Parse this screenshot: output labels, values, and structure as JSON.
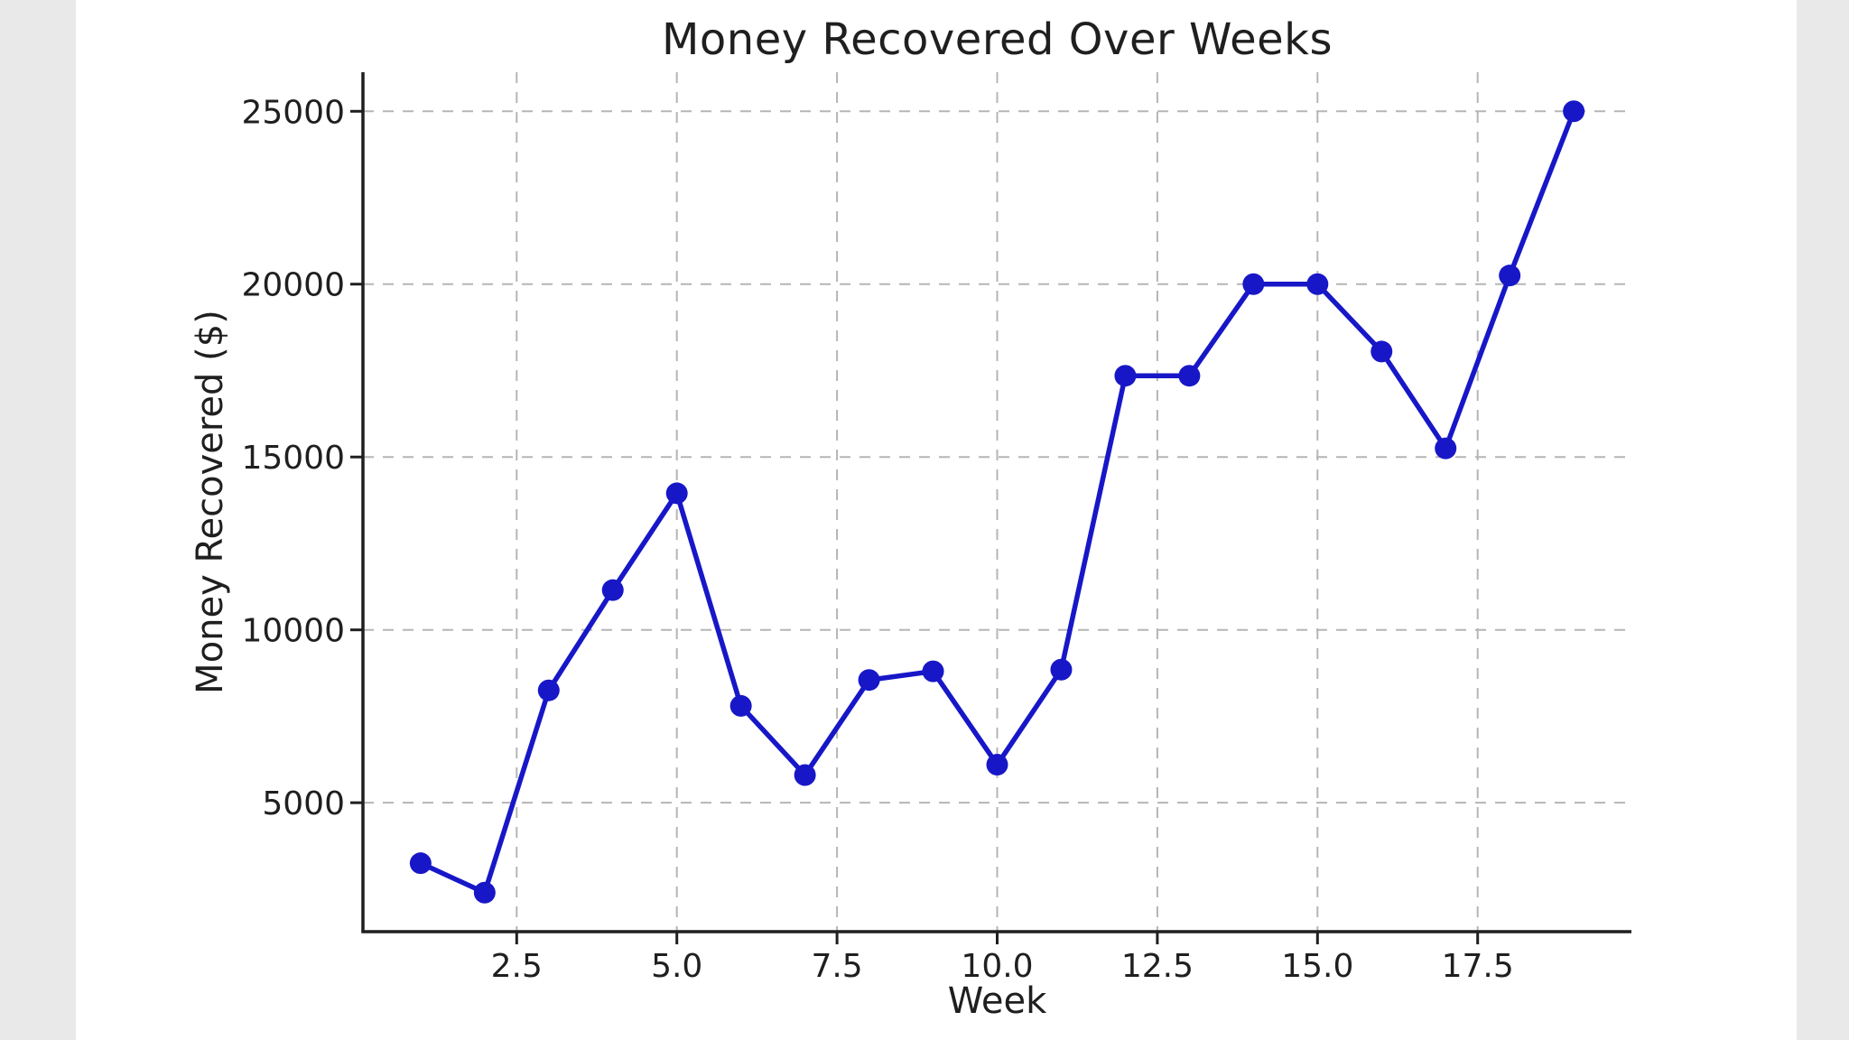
{
  "canvas": {
    "page_background": "#e9e9e9",
    "figure_background": "#ffffff"
  },
  "chart_data": {
    "type": "line",
    "title": "Money Recovered Over Weeks",
    "xlabel": "Week",
    "ylabel": "Money Recovered ($)",
    "x": [
      1,
      2,
      3,
      4,
      5,
      6,
      7,
      8,
      9,
      10,
      11,
      12,
      13,
      14,
      15,
      16,
      17,
      18,
      19
    ],
    "y": [
      3250,
      2400,
      8250,
      11150,
      13950,
      7800,
      5800,
      8550,
      8800,
      6100,
      8850,
      17350,
      17350,
      20000,
      20000,
      18050,
      15250,
      20250,
      25000
    ],
    "xlim": [
      0.1,
      19.9
    ],
    "ylim": [
      1270,
      26130
    ],
    "xticks": [
      2.5,
      5,
      7.5,
      10,
      12.5,
      15,
      17.5
    ],
    "xtick_labels": [
      "2.5",
      "5.0",
      "7.5",
      "10.0",
      "12.5",
      "15.0",
      "17.5"
    ],
    "yticks": [
      5000,
      10000,
      15000,
      20000,
      25000
    ],
    "ytick_labels": [
      "5000",
      "10000",
      "15000",
      "20000",
      "25000"
    ],
    "grid": true,
    "grid_style": "dashed",
    "legend": "none",
    "marker": "circle",
    "line_color": "#1717c8",
    "marker_color": "#1717c8",
    "grid_color": "#b5b5b5",
    "axis_color": "#1f1f1f",
    "spines_visible": [
      "left",
      "bottom"
    ]
  }
}
